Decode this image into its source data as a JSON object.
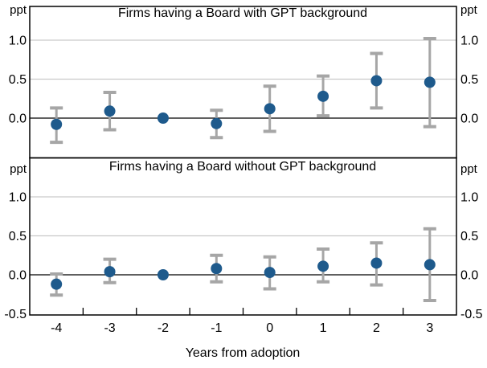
{
  "chart_data": {
    "type": "scatter",
    "subtype": "event-study-errorbar",
    "unit": "ppt",
    "xlabel": "Years from adoption",
    "x_ticks": [
      -4,
      -3,
      -2,
      -1,
      0,
      1,
      2,
      3
    ],
    "x_range": [
      -4.5,
      3.5
    ],
    "grid": "horizontal",
    "legend": "none",
    "colors": {
      "point": "#1e5a8c",
      "error_bar": "#a6a6a6",
      "gridline": "#c9c9c9",
      "axis": "#000000"
    },
    "panels": [
      {
        "title": "Firms having a Board with GPT background",
        "ylim": [
          -0.5,
          1.43
        ],
        "y_ticks": [
          1.0,
          0.5,
          0.0
        ],
        "y_tick_labels": [
          "1.0",
          "0.5",
          "0.0"
        ],
        "gridline_values": [
          1.0,
          0.5
        ],
        "zero_line": 0.0,
        "points": [
          {
            "x": -4,
            "estimate": -0.08,
            "ci_low": -0.31,
            "ci_high": 0.13
          },
          {
            "x": -3,
            "estimate": 0.09,
            "ci_low": -0.15,
            "ci_high": 0.33
          },
          {
            "x": -2,
            "estimate": 0.0,
            "ci_low": null,
            "ci_high": null
          },
          {
            "x": -1,
            "estimate": -0.07,
            "ci_low": -0.25,
            "ci_high": 0.1
          },
          {
            "x": 0,
            "estimate": 0.12,
            "ci_low": -0.17,
            "ci_high": 0.41
          },
          {
            "x": 1,
            "estimate": 0.28,
            "ci_low": 0.03,
            "ci_high": 0.54
          },
          {
            "x": 2,
            "estimate": 0.48,
            "ci_low": 0.13,
            "ci_high": 0.83
          },
          {
            "x": 3,
            "estimate": 0.46,
            "ci_low": -0.11,
            "ci_high": 1.02
          }
        ]
      },
      {
        "title": "Firms having a Board without GPT background",
        "ylim": [
          -0.52,
          1.5
        ],
        "y_ticks": [
          1.0,
          0.5,
          0.0,
          -0.5
        ],
        "y_tick_labels": [
          "1.0",
          "0.5",
          "0.0",
          "-0.5"
        ],
        "gridline_values": [
          1.0,
          0.5
        ],
        "zero_line": 0.0,
        "points": [
          {
            "x": -4,
            "estimate": -0.12,
            "ci_low": -0.26,
            "ci_high": 0.01
          },
          {
            "x": -3,
            "estimate": 0.04,
            "ci_low": -0.1,
            "ci_high": 0.2
          },
          {
            "x": -2,
            "estimate": 0.0,
            "ci_low": null,
            "ci_high": null
          },
          {
            "x": -1,
            "estimate": 0.08,
            "ci_low": -0.09,
            "ci_high": 0.25
          },
          {
            "x": 0,
            "estimate": 0.03,
            "ci_low": -0.18,
            "ci_high": 0.23
          },
          {
            "x": 1,
            "estimate": 0.11,
            "ci_low": -0.09,
            "ci_high": 0.33
          },
          {
            "x": 2,
            "estimate": 0.15,
            "ci_low": -0.13,
            "ci_high": 0.41
          },
          {
            "x": 3,
            "estimate": 0.13,
            "ci_low": -0.33,
            "ci_high": 0.59
          }
        ]
      }
    ]
  }
}
